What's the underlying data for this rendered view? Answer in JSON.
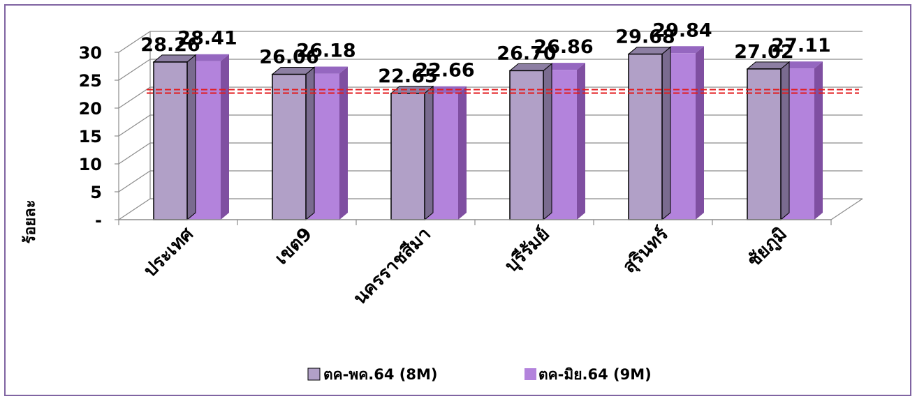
{
  "chart_data": {
    "type": "bar",
    "title": "",
    "xlabel": "",
    "ylabel": "ร้อยละ",
    "ylim": [
      0,
      30
    ],
    "yticks": [
      0,
      5,
      10,
      15,
      20,
      25,
      30
    ],
    "ytick_labels": [
      "-",
      "5",
      "10",
      "15",
      "20",
      "25",
      "30"
    ],
    "grid": true,
    "legend_position": "bottom",
    "categories": [
      "ประเทศ",
      "เขต9",
      "นครราชสีมา",
      "บุรีรัมย์",
      "สุรินทร์",
      "ชัยภูมิ"
    ],
    "series": [
      {
        "name": "ตค-พค.64 (8M)",
        "values": [
          28.26,
          26.06,
          22.65,
          26.7,
          29.68,
          27.02
        ],
        "labels": [
          "28.26",
          "26.06",
          "22.65",
          "26.70",
          "29.68",
          "27.02"
        ],
        "color": "#b1a0c7"
      },
      {
        "name": "ตค-มิย.64 (9M)",
        "values": [
          28.41,
          26.18,
          22.66,
          26.86,
          29.84,
          27.11
        ],
        "labels": [
          "28.41",
          "26.18",
          "22.66",
          "26.86",
          "29.84",
          "27.11"
        ],
        "color": "#b383dc"
      }
    ],
    "reference_line": {
      "value": 23,
      "color": "#e31a1c",
      "style": "dashed"
    }
  }
}
